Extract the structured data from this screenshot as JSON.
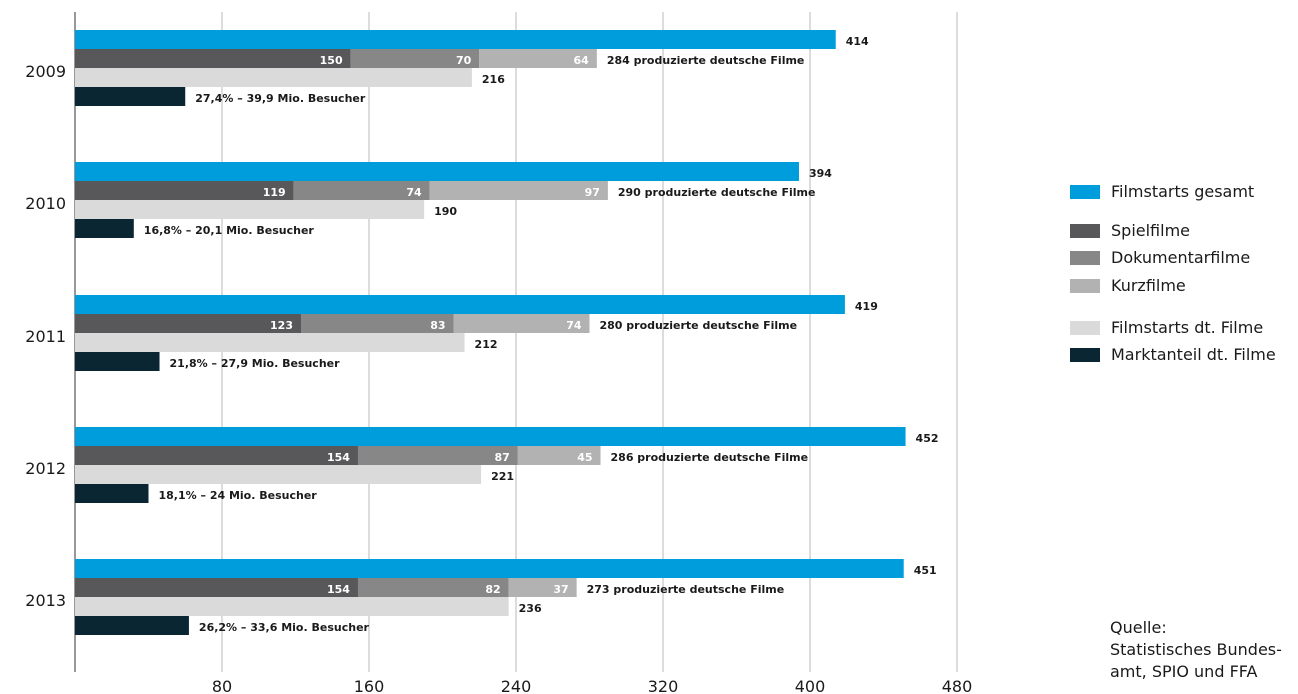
{
  "chart_data": {
    "type": "bar",
    "orientation": "horizontal",
    "categories": [
      "2009",
      "2010",
      "2011",
      "2012",
      "2013"
    ],
    "xlim": [
      0,
      480
    ],
    "x_ticks": [
      "80",
      "160",
      "240",
      "320",
      "400",
      "480"
    ],
    "grid": true,
    "legend_position": "right",
    "colors": {
      "filmstarts": "#009ddd",
      "spiel": "#58585a",
      "doku": "#878787",
      "kurz": "#b2b2b2",
      "dt": "#dadadb",
      "markt": "#0b2633"
    },
    "rows": [
      {
        "year": "2009",
        "filmstarts": 414,
        "spiel": 150,
        "doku": 70,
        "kurz": 64,
        "produced_label": "284 produzierte deutsche Filme",
        "dt": 216,
        "marktanteil_value": 60,
        "marktanteil_label": "27,4% – 39,9 Mio. Besucher"
      },
      {
        "year": "2010",
        "filmstarts": 394,
        "spiel": 119,
        "doku": 74,
        "kurz": 97,
        "produced_label": "290 produzierte deutsche Filme",
        "dt": 190,
        "marktanteil_value": 32,
        "marktanteil_label": "16,8% – 20,1 Mio. Besucher"
      },
      {
        "year": "2011",
        "filmstarts": 419,
        "spiel": 123,
        "doku": 83,
        "kurz": 74,
        "produced_label": "280 produzierte deutsche Filme",
        "dt": 212,
        "marktanteil_value": 46,
        "marktanteil_label": "21,8% – 27,9 Mio. Besucher"
      },
      {
        "year": "2012",
        "filmstarts": 452,
        "spiel": 154,
        "doku": 87,
        "kurz": 45,
        "produced_label": "286 produzierte deutsche Filme",
        "dt": 221,
        "marktanteil_value": 40,
        "marktanteil_label": "18,1% – 24 Mio. Besucher"
      },
      {
        "year": "2013",
        "filmstarts": 451,
        "spiel": 154,
        "doku": 82,
        "kurz": 37,
        "produced_label": "273 produzierte deutsche Filme",
        "dt": 236,
        "marktanteil_value": 62,
        "marktanteil_label": "26,2% – 33,6 Mio. Besucher"
      }
    ]
  },
  "legend": [
    "Filmstarts gesamt",
    "Spielfilme",
    "Dokumentarfilme",
    "Kurzfilme",
    "Filmstarts dt. Filme",
    "Marktanteil dt. Filme"
  ],
  "source": [
    "Quelle:",
    "Statistisches Bundes-",
    "amt, SPIO und FFA"
  ]
}
